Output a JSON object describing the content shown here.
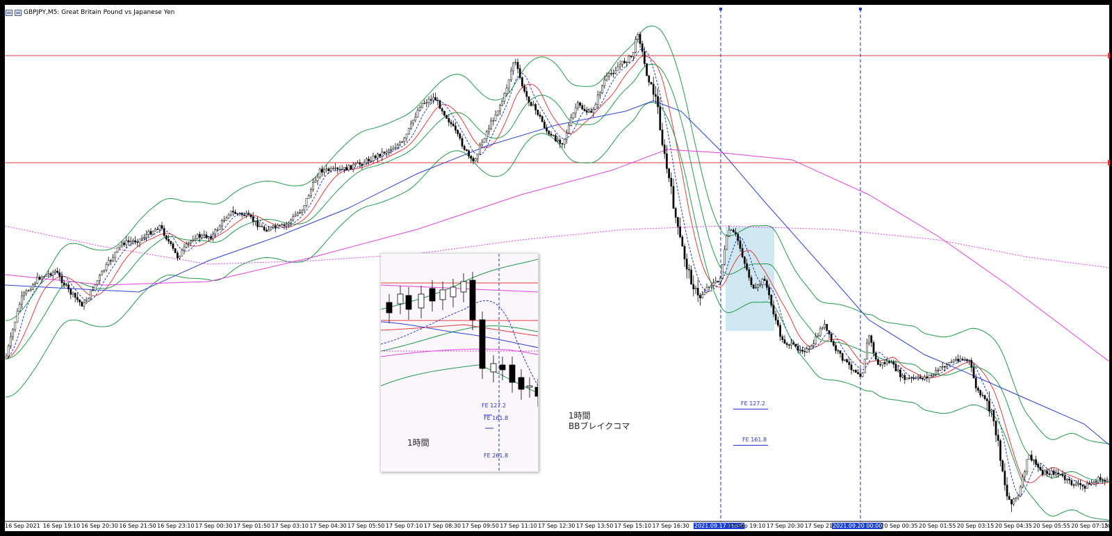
{
  "window": {
    "title": "GBPJPY,M5:  Great Britain Pound vs Japanese Yen"
  },
  "colors": {
    "hline": "#e23b3b",
    "ma_red": "#e23b3b",
    "ma_blue": "#2b3fd8",
    "ma_magenta": "#e040e0",
    "bb_green": "#1f9a4a",
    "vline": "#2233cc",
    "highlight": "#a8d4e6",
    "candle": "#000000"
  },
  "time_axis": {
    "labels": [
      "16 Sep 2021",
      "16 Sep 19:10",
      "16 Sep 20:30",
      "16 Sep 21:50",
      "16 Sep 23:10",
      "17 Sep 00:30",
      "17 Sep 01:50",
      "17 Sep 03:10",
      "17 Sep 04:30",
      "17 Sep 05:50",
      "17 Sep 07:10",
      "17 Sep 08:30",
      "17 Sep 09:50",
      "17 Sep 11:10",
      "17 Sep 12:30",
      "17 Sep 13:50",
      "17 Sep 15:10",
      "17 Sep 16:30",
      "2021.09.17 19:00",
      "17 Sep 19:10",
      "17 Sep 20:30",
      "17 Sep 21:50",
      "2021.09.20 00:00",
      "20 Sep 00:35",
      "20 Sep 01:55",
      "20 Sep 03:15",
      "20 Sep 04:35",
      "20 Sep 05:55",
      "20 Sep 07:15",
      "20"
    ],
    "highlighted": [
      "2021.09.17 19:00",
      "2021.09.20 00:00"
    ]
  },
  "inset": {
    "label": "1時間",
    "fe": [
      "FE  127.2",
      "FE  161.8",
      "FE  261.8"
    ]
  },
  "annotation": {
    "line1": "1時間",
    "line2": "BBブレイクコマ"
  },
  "fe_labels": [
    "FE  127.2",
    "FE  161.8"
  ]
}
